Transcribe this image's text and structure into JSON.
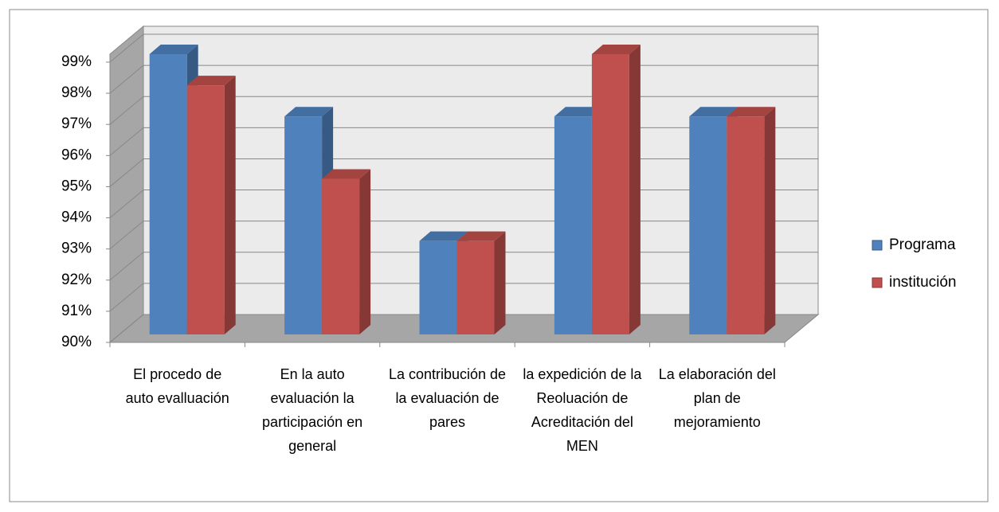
{
  "chart_data": {
    "type": "bar3d",
    "categories": [
      "El procedo de auto evalluación",
      "En la auto evaluación la participación en general",
      "La contribución de la evaluación de pares",
      "la expedición de la Reoluación de Acreditación del MEN",
      "La elaboración del plan de mejoramiento"
    ],
    "series": [
      {
        "name": "Programa",
        "color": "#4f81bd",
        "values": [
          99,
          97,
          93,
          97,
          97
        ]
      },
      {
        "name": "institución",
        "color": "#c0504d",
        "values": [
          98,
          95,
          93,
          99,
          97
        ]
      }
    ],
    "ylim": [
      90,
      99
    ],
    "yticks": [
      {
        "value": 90,
        "label": "90%"
      },
      {
        "value": 91,
        "label": "91%"
      },
      {
        "value": 92,
        "label": "92%"
      },
      {
        "value": 93,
        "label": "93%"
      },
      {
        "value": 94,
        "label": "94%"
      },
      {
        "value": 95,
        "label": "95%"
      },
      {
        "value": 96,
        "label": "96%"
      },
      {
        "value": 97,
        "label": "97%"
      },
      {
        "value": 98,
        "label": "98%"
      },
      {
        "value": 99,
        "label": "99%"
      }
    ],
    "grid": true,
    "legend": "right"
  }
}
